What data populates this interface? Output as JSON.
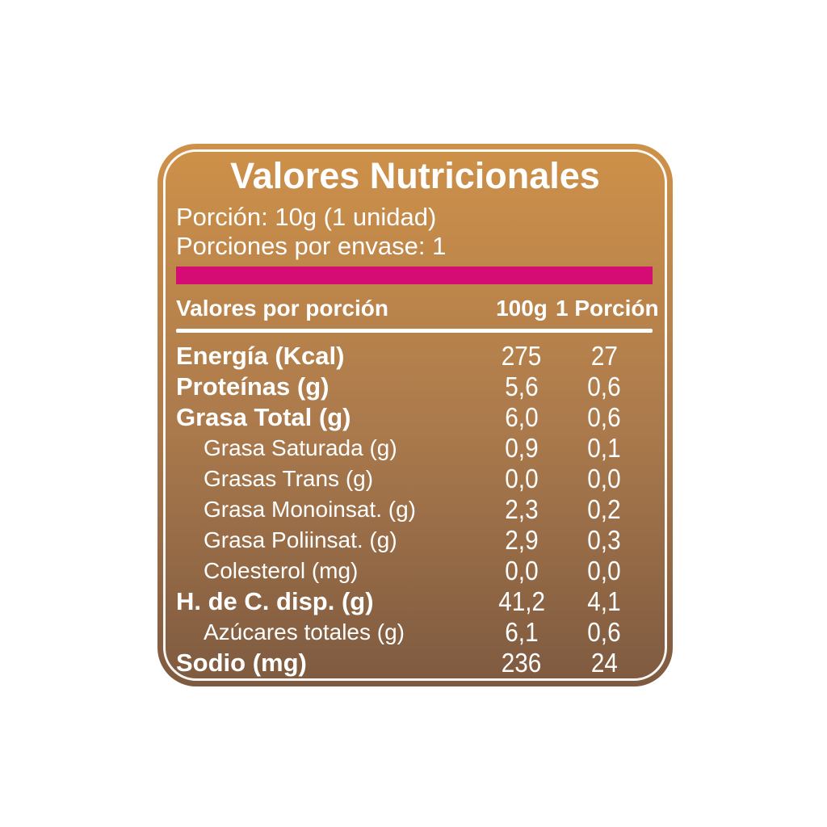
{
  "label": {
    "title": "Valores Nutricionales",
    "serving": {
      "size_line": "Porción: 10g (1 unidad)",
      "per_container_line": "Porciones por envase: 1"
    },
    "table": {
      "header": {
        "label": "Valores por porción",
        "col_100g": "100g",
        "col_portion": "1 Porción"
      },
      "rows": [
        {
          "name": "Energía (Kcal)",
          "per_100g": "275",
          "per_portion": "27",
          "bold": true,
          "indent": false
        },
        {
          "name": "Proteínas (g)",
          "per_100g": "5,6",
          "per_portion": "0,6",
          "bold": true,
          "indent": false
        },
        {
          "name": "Grasa Total (g)",
          "per_100g": "6,0",
          "per_portion": "0,6",
          "bold": true,
          "indent": false
        },
        {
          "name": "Grasa Saturada (g)",
          "per_100g": "0,9",
          "per_portion": "0,1",
          "bold": false,
          "indent": true
        },
        {
          "name": "Grasas Trans (g)",
          "per_100g": "0,0",
          "per_portion": "0,0",
          "bold": false,
          "indent": true
        },
        {
          "name": "Grasa Monoinsat. (g)",
          "per_100g": "2,3",
          "per_portion": "0,2",
          "bold": false,
          "indent": true
        },
        {
          "name": "Grasa Poliinsat. (g)",
          "per_100g": "2,9",
          "per_portion": "0,3",
          "bold": false,
          "indent": true
        },
        {
          "name": "Colesterol (mg)",
          "per_100g": "0,0",
          "per_portion": "0,0",
          "bold": false,
          "indent": true
        },
        {
          "name": "H. de C. disp. (g)",
          "per_100g": "41,2",
          "per_portion": "4,1",
          "bold": true,
          "indent": false
        },
        {
          "name": "Azúcares totales (g)",
          "per_100g": "6,1",
          "per_portion": "0,6",
          "bold": false,
          "indent": true
        },
        {
          "name": "Sodio (mg)",
          "per_100g": "236",
          "per_portion": "24",
          "bold": true,
          "indent": false
        }
      ]
    },
    "colors": {
      "accent_bar": "#D60C75",
      "card_gradient_top": "#CE9149",
      "card_gradient_mid": "#AB7A4C",
      "card_gradient_bottom": "#7E5A40",
      "text": "#FFFFFF"
    }
  }
}
